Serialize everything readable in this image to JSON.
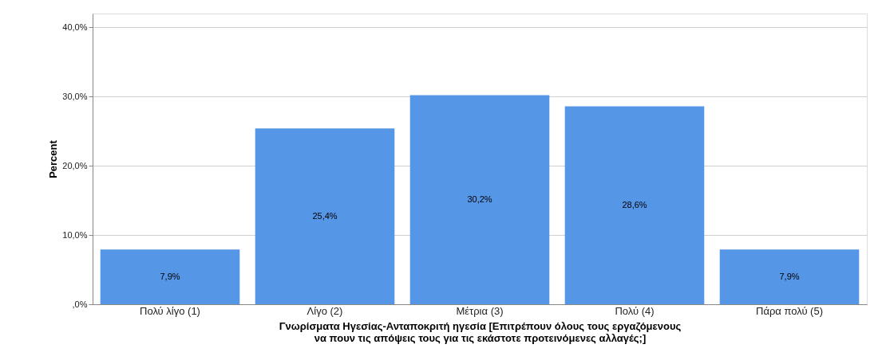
{
  "chart_data": {
    "type": "bar",
    "ylabel": "Percent",
    "xlabel": "Γνωρίσματα Ηγεσίας-Ανταποκριτή ηγεσία                    [Επιτρέπουν όλους τους εργαζόμενους\nνα πουν τις απόψεις τους για τις εκάστοτε προτεινόμενες αλλαγές;]",
    "categories": [
      "Πολύ λίγο (1)",
      "Λίγο (2)",
      "Μέτρια (3)",
      "Πολύ (4)",
      "Πάρα πολύ (5)"
    ],
    "values": [
      7.9,
      25.4,
      30.2,
      28.6,
      7.9
    ],
    "value_labels": [
      "7,9%",
      "25,4%",
      "30,2%",
      "28,6%",
      "7,9%"
    ],
    "color": "#5596e6",
    "ylim": [
      0,
      42
    ],
    "yticks": [
      {
        "value": 0,
        "label": ",0%"
      },
      {
        "value": 10,
        "label": "10,0%"
      },
      {
        "value": 20,
        "label": "20,0%"
      },
      {
        "value": 30,
        "label": "30,0%"
      },
      {
        "value": 40,
        "label": "40,0%"
      }
    ],
    "grid": "y"
  }
}
